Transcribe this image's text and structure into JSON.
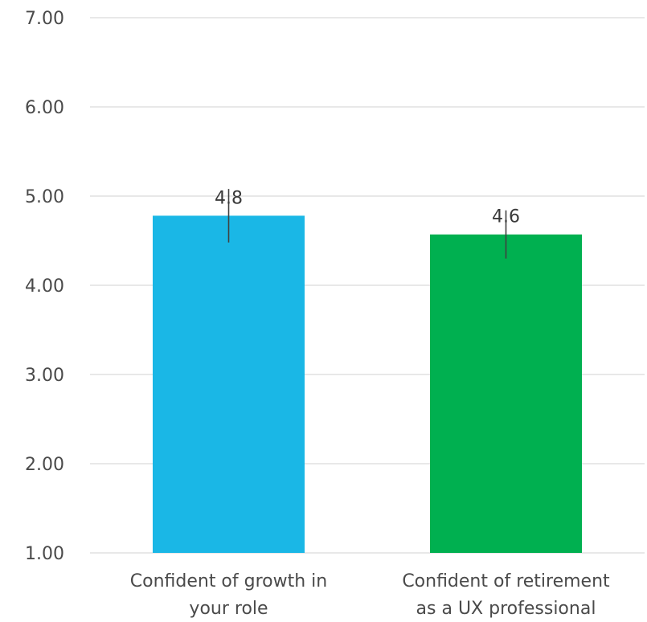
{
  "chart_data": {
    "type": "bar",
    "title": "",
    "xlabel": "",
    "ylabel": "",
    "ylim": [
      1,
      7
    ],
    "yticks": [
      1,
      2,
      3,
      4,
      5,
      6,
      7
    ],
    "ytick_labels": [
      "1.00",
      "2.00",
      "3.00",
      "4.00",
      "5.00",
      "6.00",
      "7.00"
    ],
    "grid": true,
    "categories": [
      [
        "Confident of growth in",
        "your role"
      ],
      [
        "Confident of retirement",
        "as a UX professional"
      ]
    ],
    "values": [
      4.78,
      4.57
    ],
    "data_labels": [
      "4.8",
      "4.6"
    ],
    "error_bars": [
      [
        4.48,
        5.08
      ],
      [
        4.3,
        4.84
      ]
    ],
    "colors": [
      "#1ab7e6",
      "#00b050"
    ],
    "error_bar_color": "#404040"
  }
}
